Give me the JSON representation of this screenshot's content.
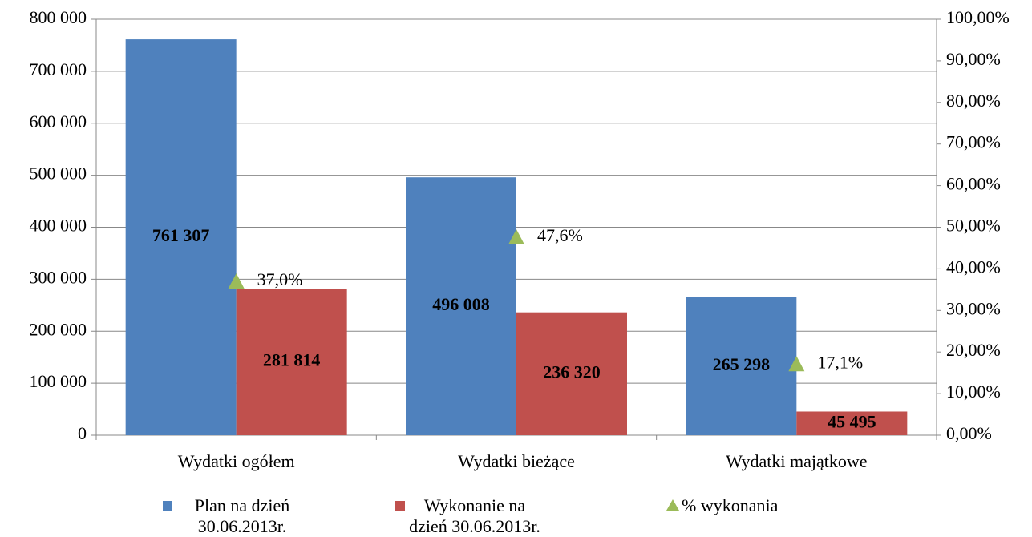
{
  "chart_data": {
    "type": "bar",
    "categories": [
      "Wydatki ogółem",
      "Wydatki bieżące",
      "Wydatki majątkowe"
    ],
    "series": [
      {
        "name": "Plan na dzień 30.06.2013r.",
        "color": "#4f81bd",
        "values": [
          761307,
          496008,
          265298
        ],
        "value_labels": [
          "761 307",
          "496 008",
          "265 298"
        ]
      },
      {
        "name": "Wykonanie na dzień 30.06.2013r.",
        "color": "#c0504d",
        "values": [
          281814,
          236320,
          45495
        ],
        "value_labels": [
          "281 814",
          "236 320",
          "45 495"
        ]
      },
      {
        "name": "% wykonania",
        "type": "marker",
        "axis": "y2",
        "color": "#9bbb59",
        "values": [
          37.0,
          47.6,
          17.1
        ],
        "value_labels": [
          "37,0%",
          "47,6%",
          "17,1%"
        ]
      }
    ],
    "ylim": [
      0,
      800000
    ],
    "yticks": [
      0,
      {
        "value": 100000,
        "label": "100 000"
      },
      {
        "value": 200000,
        "label": "200 000"
      },
      {
        "value": 300000,
        "label": "300 000"
      },
      {
        "value": 400000,
        "label": "400 000"
      },
      {
        "value": 500000,
        "label": "500 000"
      },
      {
        "value": 600000,
        "label": "600 000"
      },
      {
        "value": 700000,
        "label": "700 000"
      },
      {
        "value": 800000,
        "label": "800 000"
      }
    ],
    "y2lim": [
      0,
      100
    ],
    "y2ticks": [
      {
        "value": 0,
        "label": "0,00%"
      },
      {
        "value": 10,
        "label": "10,00%"
      },
      {
        "value": 20,
        "label": "20,00%"
      },
      {
        "value": 30,
        "label": "30,00%"
      },
      {
        "value": 40,
        "label": "40,00%"
      },
      {
        "value": 50,
        "label": "50,00%"
      },
      {
        "value": 60,
        "label": "60,00%"
      },
      {
        "value": 70,
        "label": "70,00%"
      },
      {
        "value": 80,
        "label": "80,00%"
      },
      {
        "value": 90,
        "label": "90,00%"
      },
      {
        "value": 100,
        "label": "100,00%"
      }
    ],
    "grid": true,
    "legend": "bottom"
  }
}
